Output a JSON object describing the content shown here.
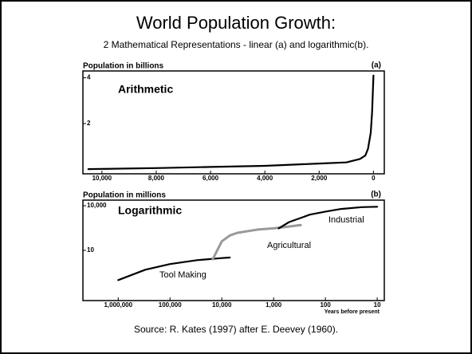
{
  "title": "World Population Growth:",
  "subtitle": "2 Mathematical Representations - linear (a) and logarithmic(b).",
  "source": "Source: R. Kates (1997) after E. Deevey (1960).",
  "chart_data": [
    {
      "type": "line",
      "ylabel": "Population in billions",
      "panel_label": "(a)",
      "heading": "Arithmetic",
      "xlim": [
        10700,
        -400
      ],
      "ylim": [
        -0.2,
        4.3
      ],
      "xticks": [
        {
          "value": 10000,
          "label": "10,000"
        },
        {
          "value": 8000,
          "label": "8,000"
        },
        {
          "value": 6000,
          "label": "6,000"
        },
        {
          "value": 4000,
          "label": "4,000"
        },
        {
          "value": 2000,
          "label": "2,000"
        },
        0
      ],
      "yticks": [
        2,
        4
      ],
      "x": [
        10500,
        8000,
        6000,
        4000,
        2000,
        1000,
        500,
        300,
        200,
        100,
        50,
        0
      ],
      "series": [
        {
          "color": "#000000",
          "values": [
            0.005,
            0.05,
            0.1,
            0.15,
            0.25,
            0.3,
            0.45,
            0.6,
            0.9,
            1.6,
            2.5,
            4.1
          ]
        }
      ]
    },
    {
      "type": "line",
      "ylabel": "Population in millions",
      "panel_label": "(b)",
      "heading": "Logarithmic",
      "xlabel": "Years before present",
      "xlog": true,
      "ylog": true,
      "xlim": [
        4800000,
        7.3
      ],
      "ylim": [
        0.0042,
        23700
      ],
      "xticks": [
        {
          "value": 1000000,
          "label": "1,000,000"
        },
        {
          "value": 100000,
          "label": "100,000"
        },
        {
          "value": 10000,
          "label": "10,000"
        },
        {
          "value": 1000,
          "label": "1,000"
        },
        100,
        10
      ],
      "yticks": [
        {
          "value": 10000,
          "label": "10,000"
        },
        10
      ],
      "series": [
        {
          "name": "Tool Making",
          "color": "#000000",
          "x": [
            1000000,
            300000,
            100000,
            30000,
            10000,
            7000
          ],
          "values": [
            0.1,
            0.5,
            1.2,
            2.2,
            3,
            3.3
          ]
        },
        {
          "name": "Agricultural",
          "color": "#999999",
          "x": [
            15000,
            10000,
            7000,
            5000,
            3000,
            2000,
            1000,
            500,
            300
          ],
          "values": [
            2.5,
            40,
            100,
            150,
            200,
            250,
            300,
            400,
            500
          ]
        },
        {
          "name": "Industrial",
          "color": "#000000",
          "x": [
            800,
            500,
            300,
            200,
            100,
            50,
            20,
            10
          ],
          "values": [
            300,
            800,
            1500,
            2500,
            4000,
            6000,
            8000,
            8500
          ]
        }
      ]
    }
  ]
}
